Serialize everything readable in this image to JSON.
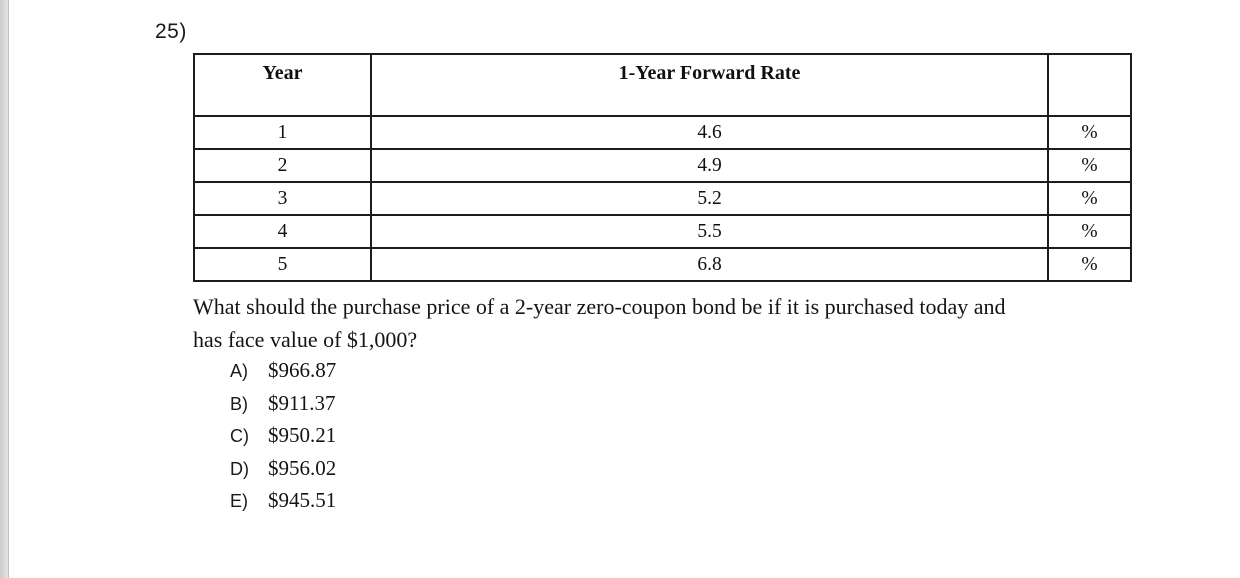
{
  "colors": {
    "text": "#141414",
    "table_border": "#1c1c1c",
    "page_background": "#ffffff",
    "edge_strip": "#d5d5d5"
  },
  "question": {
    "number": "25)",
    "line1": "What should the purchase price of a 2-year zero-coupon bond be if it is purchased today and",
    "line2": "has face value of $1,000?"
  },
  "table": {
    "headers": {
      "year": "Year",
      "rate": "1-Year Forward Rate",
      "unit": ""
    },
    "rows": [
      {
        "year": "1",
        "rate": "4.6",
        "unit": "%"
      },
      {
        "year": "2",
        "rate": "4.9",
        "unit": "%"
      },
      {
        "year": "3",
        "rate": "5.2",
        "unit": "%"
      },
      {
        "year": "4",
        "rate": "5.5",
        "unit": "%"
      },
      {
        "year": "5",
        "rate": "6.8",
        "unit": "%"
      }
    ]
  },
  "options": [
    {
      "letter": "A)",
      "value": "$966.87"
    },
    {
      "letter": "B)",
      "value": "$911.37"
    },
    {
      "letter": "C)",
      "value": "$950.21"
    },
    {
      "letter": "D)",
      "value": "$956.02"
    },
    {
      "letter": "E)",
      "value": "$945.51"
    }
  ]
}
